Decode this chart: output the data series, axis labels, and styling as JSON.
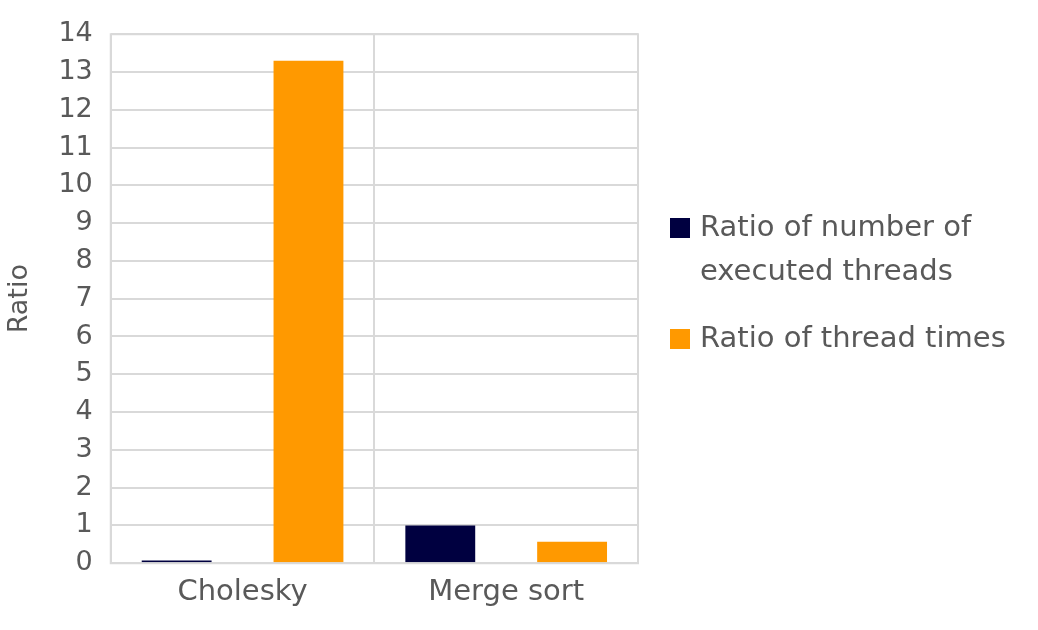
{
  "chart_data": {
    "type": "bar",
    "ylabel": "Ratio",
    "categories": [
      "Cholesky",
      "Merge sort"
    ],
    "series": [
      {
        "name": "Ratio of number of executed threads",
        "color": "#000040",
        "values": [
          0.07,
          1.0
        ]
      },
      {
        "name": "Ratio of thread times",
        "color": "#ff9900",
        "values": [
          13.3,
          0.57
        ]
      }
    ],
    "ylim": [
      0,
      14
    ],
    "yticks": [
      0,
      1,
      2,
      3,
      4,
      5,
      6,
      7,
      8,
      9,
      10,
      11,
      12,
      13,
      14
    ],
    "grid": true,
    "legend": "right"
  }
}
